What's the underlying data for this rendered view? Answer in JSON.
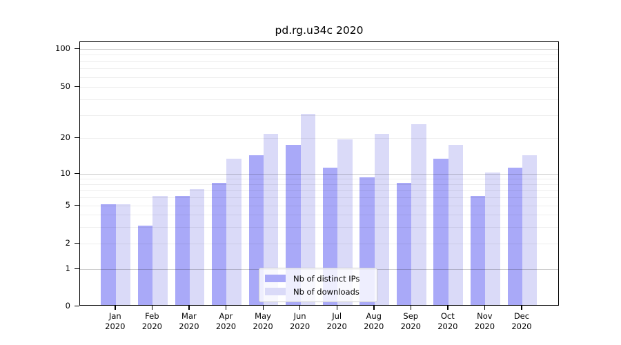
{
  "chart_data": {
    "type": "bar",
    "title": "pd.rg.u34c 2020",
    "categories": [
      "Jan",
      "Feb",
      "Mar",
      "Apr",
      "May",
      "Jun",
      "Jul",
      "Aug",
      "Sep",
      "Oct",
      "Nov",
      "Dec"
    ],
    "category_year": "2020",
    "series": [
      {
        "name": "Nb of distinct IPs",
        "color": "#a9a9f8",
        "values": [
          5,
          3,
          6,
          8,
          14,
          17,
          11,
          9,
          8,
          13,
          6,
          11
        ]
      },
      {
        "name": "Nb of downloads",
        "color": "#dadaf8",
        "values": [
          5,
          6,
          7,
          13,
          21,
          30,
          19,
          21,
          25,
          17,
          10,
          14
        ]
      }
    ],
    "yscale": "symlog",
    "ylim": [
      0,
      120
    ],
    "y_ticks": [
      {
        "value": 100,
        "label": "100"
      },
      {
        "value": 50,
        "label": "50"
      },
      {
        "value": 20,
        "label": "20"
      },
      {
        "value": 10,
        "label": "10"
      },
      {
        "value": 5,
        "label": "5"
      },
      {
        "value": 2,
        "label": "2"
      },
      {
        "value": 1,
        "label": "1"
      },
      {
        "value": 0,
        "label": "0"
      }
    ],
    "y_major_grid": [
      1,
      10,
      100
    ],
    "y_minor_grid": [
      2,
      3,
      4,
      5,
      6,
      7,
      8,
      9,
      20,
      30,
      40,
      50,
      60,
      70,
      80,
      90
    ],
    "grid": true,
    "legend_position": "lower center"
  }
}
